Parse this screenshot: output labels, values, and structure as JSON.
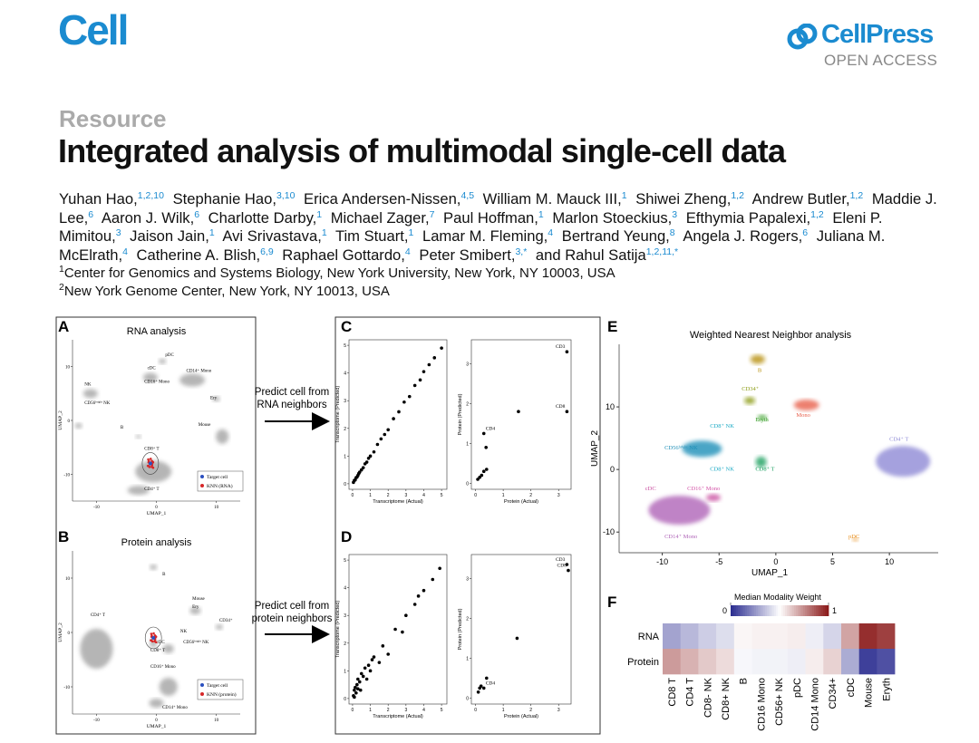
{
  "header": {
    "journal": "Cell",
    "publisher": "CellPress",
    "access": "OPEN ACCESS"
  },
  "article": {
    "type": "Resource",
    "title": "Integrated analysis of multimodal single-cell data",
    "authors": [
      {
        "name": "Yuhan Hao,",
        "affiliations": "1,2,10"
      },
      {
        "name": "Stephanie Hao,",
        "affiliations": "3,10"
      },
      {
        "name": "Erica Andersen-Nissen,",
        "affiliations": "4,5"
      },
      {
        "name": "William M. Mauck III,",
        "affiliations": "1"
      },
      {
        "name": "Shiwei Zheng,",
        "affiliations": "1,2"
      },
      {
        "name": "Andrew Butler,",
        "affiliations": "1,2"
      },
      {
        "name": "Maddie J. Lee,",
        "affiliations": "6"
      },
      {
        "name": "Aaron J. Wilk,",
        "affiliations": "6"
      },
      {
        "name": "Charlotte Darby,",
        "affiliations": "1"
      },
      {
        "name": "Michael Zager,",
        "affiliations": "7"
      },
      {
        "name": "Paul Hoffman,",
        "affiliations": "1"
      },
      {
        "name": "Marlon Stoeckius,",
        "affiliations": "3"
      },
      {
        "name": "Efthymia Papalexi,",
        "affiliations": "1,2"
      },
      {
        "name": "Eleni P. Mimitou,",
        "affiliations": "3"
      },
      {
        "name": "Jaison Jain,",
        "affiliations": "1"
      },
      {
        "name": "Avi Srivastava,",
        "affiliations": "1"
      },
      {
        "name": "Tim Stuart,",
        "affiliations": "1"
      },
      {
        "name": "Lamar M. Fleming,",
        "affiliations": "4"
      },
      {
        "name": "Bertrand Yeung,",
        "affiliations": "8"
      },
      {
        "name": "Angela J. Rogers,",
        "affiliations": "6"
      },
      {
        "name": "Juliana M. McElrath,",
        "affiliations": "4"
      },
      {
        "name": "Catherine A. Blish,",
        "affiliations": "6,9"
      },
      {
        "name": "Raphael Gottardo,",
        "affiliations": "4"
      },
      {
        "name": "Peter Smibert,",
        "affiliations": "3,*"
      },
      {
        "name": "and Rahul Satija",
        "affiliations": "1,2,11,*"
      }
    ],
    "affiliations": [
      {
        "number": "1",
        "text": "Center for Genomics and Systems Biology, New York University, New York, NY 10003, USA"
      },
      {
        "number": "2",
        "text": "New York Genome Center, New York, NY 10013, USA"
      }
    ]
  },
  "figure": {
    "A": {
      "letter": "A",
      "title": "RNA analysis",
      "xlabel": "UMAP_1",
      "ylabel": "UMAP_2",
      "xlim": [
        -14,
        14
      ],
      "ylim": [
        -15,
        15
      ],
      "xticks": [
        -10,
        0,
        10
      ],
      "yticks": [
        -10,
        0,
        10
      ],
      "labels": [
        "pDC",
        "cDC",
        "CD14⁺ Mono",
        "CD16⁺ Mono",
        "NK",
        "CD56ᵇʳⁱᵍʰᵗ NK",
        "Ery",
        "B",
        "Mouse",
        "CD8⁺ T",
        "CD4⁺ T"
      ],
      "legend": [
        {
          "name": "Target cell",
          "color": "#2a4fbf"
        },
        {
          "name": "KNN (RNA)",
          "color": "#d62728"
        }
      ]
    },
    "B": {
      "letter": "B",
      "title": "Protein analysis",
      "xlabel": "UMAP_1",
      "ylabel": "UMAP_2",
      "xlim": [
        -14,
        14
      ],
      "ylim": [
        -15,
        15
      ],
      "xticks": [
        -10,
        0,
        10
      ],
      "yticks": [
        -10,
        0,
        10
      ],
      "labels": [
        "B",
        "Mouse",
        "Ery",
        "CD34⁺",
        "CD4⁺ T",
        "CD8⁺ T",
        "NK",
        "CD56ᵇʳⁱᵍʰᵗ NK",
        "cDC",
        "CD16⁺ Mono",
        "CD14⁺ Mono"
      ],
      "legend": [
        {
          "name": "Target cell",
          "color": "#2a4fbf"
        },
        {
          "name": "KNN (protein)",
          "color": "#d62728"
        }
      ]
    },
    "arrow_rna": [
      "Predict cell from",
      "RNA neighbors"
    ],
    "arrow_protein": [
      "Predict cell from",
      "protein neighbors"
    ],
    "C": {
      "letter": "C",
      "transcriptome": {
        "xlabel": "Transcriptome (Actual)",
        "ylabel": "Transcriptome (Predicted)",
        "xlim": [
          -0.2,
          5.3
        ],
        "ylim": [
          -0.2,
          5.2
        ],
        "xticks": [
          0,
          1,
          2,
          3,
          4,
          5
        ],
        "yticks": [
          0,
          1,
          2,
          3,
          4,
          5
        ],
        "x": [
          0.05,
          0.1,
          0.15,
          0.2,
          0.25,
          0.3,
          0.35,
          0.4,
          0.5,
          0.6,
          0.7,
          0.8,
          0.9,
          1.0,
          1.2,
          1.4,
          1.6,
          1.8,
          2.0,
          2.3,
          2.6,
          2.9,
          3.2,
          3.5,
          3.8,
          4.0,
          4.3,
          4.6,
          5.0
        ],
        "y": [
          0.05,
          0.12,
          0.14,
          0.22,
          0.24,
          0.3,
          0.37,
          0.42,
          0.5,
          0.58,
          0.72,
          0.78,
          0.92,
          1.0,
          1.15,
          1.42,
          1.62,
          1.78,
          1.95,
          2.35,
          2.6,
          2.95,
          3.15,
          3.55,
          3.75,
          4.05,
          4.3,
          4.55,
          4.9
        ]
      },
      "protein": {
        "xlabel": "Protein (Actual)",
        "ylabel": "Protein (Predicted)",
        "xlim": [
          -0.15,
          3.45
        ],
        "ylim": [
          -0.15,
          3.6
        ],
        "xticks": [
          0,
          1,
          2,
          3
        ],
        "yticks": [
          0,
          1,
          2,
          3
        ],
        "x": [
          0.08,
          0.15,
          0.22,
          0.3,
          0.3,
          0.38,
          0.4,
          1.55,
          3.3,
          3.3
        ],
        "y": [
          0.1,
          0.15,
          0.2,
          0.3,
          1.25,
          0.9,
          0.35,
          1.8,
          3.3,
          1.8
        ],
        "names": [
          null,
          null,
          null,
          null,
          "CD4",
          null,
          null,
          null,
          "CD3",
          "CD8"
        ]
      }
    },
    "D": {
      "letter": "D",
      "transcriptome": {
        "xlabel": "Transcriptome (Actual)",
        "ylabel": "Transcriptome (Predicted)",
        "xlim": [
          -0.2,
          5.3
        ],
        "ylim": [
          -0.2,
          5.2
        ],
        "xticks": [
          0,
          1,
          2,
          3,
          4,
          5
        ],
        "yticks": [
          0,
          1,
          2,
          3,
          4,
          5
        ],
        "x": [
          0.05,
          0.1,
          0.1,
          0.15,
          0.2,
          0.25,
          0.3,
          0.3,
          0.4,
          0.45,
          0.5,
          0.6,
          0.7,
          0.8,
          0.9,
          1.0,
          1.1,
          1.2,
          1.5,
          1.7,
          2.0,
          2.4,
          2.8,
          3.0,
          3.5,
          3.7,
          4.0,
          4.5,
          4.9
        ],
        "y": [
          0.1,
          0.3,
          0.05,
          0.4,
          0.2,
          0.5,
          0.35,
          0.7,
          0.6,
          0.3,
          0.9,
          0.8,
          1.1,
          0.7,
          1.2,
          1.0,
          1.4,
          1.5,
          1.3,
          1.9,
          1.6,
          2.5,
          2.4,
          3.0,
          3.4,
          3.7,
          3.9,
          4.3,
          4.7
        ]
      },
      "protein": {
        "xlabel": "Protein (Actual)",
        "ylabel": "Protein (Predicted)",
        "xlim": [
          -0.15,
          3.45
        ],
        "ylim": [
          -0.15,
          3.6
        ],
        "xticks": [
          0,
          1,
          2,
          3
        ],
        "yticks": [
          0,
          1,
          2,
          3
        ],
        "x": [
          0.1,
          0.15,
          0.2,
          0.3,
          0.4,
          1.5,
          3.3,
          3.35
        ],
        "y": [
          0.15,
          0.25,
          0.3,
          0.25,
          0.5,
          1.5,
          3.35,
          3.2
        ],
        "names": [
          null,
          null,
          null,
          "CD4",
          null,
          null,
          "CD3",
          "CD8"
        ]
      }
    },
    "E": {
      "letter": "E",
      "title": "Weighted Nearest Neighbor analysis",
      "xlabel": "UMAP_1",
      "ylabel": "UMAP_2",
      "xlim": [
        -13.8,
        14.3
      ],
      "ylim": [
        -13.3,
        20
      ],
      "xticks": [
        -10,
        -5,
        0,
        5,
        10
      ],
      "yticks": [
        -10,
        0,
        10
      ],
      "labels": [
        {
          "text": "B",
          "color": "#b8900a"
        },
        {
          "text": "CD34⁺",
          "color": "#8a9a10"
        },
        {
          "text": "Eryth",
          "color": "#3aa02a"
        },
        {
          "text": "Mono",
          "color": "#e8604c"
        },
        {
          "text": "CD8⁺ NK",
          "color": "#19a9c4"
        },
        {
          "text": "CD56ᵇʳⁱᵍʰᵗ NK",
          "color": "#1f8fb8"
        },
        {
          "text": "CD8⁺ NK",
          "color": "#19a9c4"
        },
        {
          "text": "CD8⁺ T",
          "color": "#1aa060"
        },
        {
          "text": "CD4⁺ T",
          "color": "#8f8ad6"
        },
        {
          "text": "cDC",
          "color": "#c94fa0"
        },
        {
          "text": "CD16⁺ Mono",
          "color": "#d454a8"
        },
        {
          "text": "CD14⁺ Mono",
          "color": "#b065b8"
        },
        {
          "text": "pDC",
          "color": "#e89020"
        }
      ]
    },
    "F": {
      "letter": "F",
      "colorbar_title": "Median Modality Weight",
      "colorbar_ticks": [
        0,
        1
      ],
      "colors": [
        "#2d2f91",
        "#ffffff",
        "#8c1c1c"
      ],
      "rows": [
        "RNA",
        "Protein"
      ],
      "columns": [
        "CD8 T",
        "CD4 T",
        "CD8- NK",
        "CD8+ NK",
        "B",
        "CD16 Mono",
        "CD56+ NK",
        "pDC",
        "CD14 Mono",
        "CD34+",
        "cDC",
        "Mouse",
        "Eryth"
      ],
      "values": [
        [
          0.28,
          0.33,
          0.38,
          0.42,
          0.52,
          0.53,
          0.53,
          0.54,
          0.46,
          0.4,
          0.7,
          0.96,
          0.92
        ],
        [
          0.72,
          0.67,
          0.62,
          0.58,
          0.48,
          0.47,
          0.47,
          0.46,
          0.54,
          0.6,
          0.3,
          0.04,
          0.08
        ]
      ]
    }
  }
}
